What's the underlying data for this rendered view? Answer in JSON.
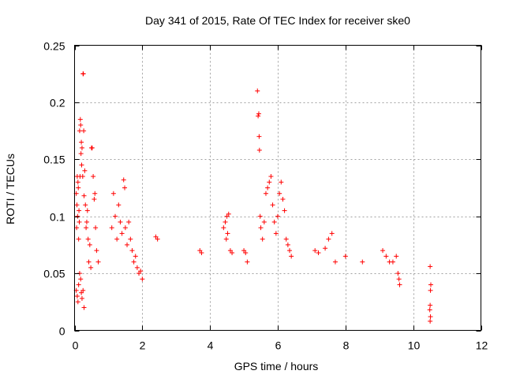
{
  "chart_data": {
    "type": "scatter",
    "title": "Day 341 of 2015, Rate Of TEC Index for receiver ske0",
    "xlabel": "GPS time / hours",
    "ylabel": "ROTI / TECUs",
    "xlim": [
      0,
      12
    ],
    "ylim": [
      0,
      0.25
    ],
    "xticks": [
      0,
      2,
      4,
      6,
      8,
      10,
      12
    ],
    "xtick_labels": [
      "0",
      "2",
      "4",
      "6",
      "8",
      "10",
      "12"
    ],
    "yticks": [
      0,
      0.05,
      0.1,
      0.15,
      0.2,
      0.25
    ],
    "ytick_labels": [
      "0",
      "0.05",
      "0.1",
      "0.15",
      "0.2",
      "0.25"
    ],
    "grid": true,
    "marker": "+",
    "marker_color": "#ff0000",
    "series": [
      {
        "name": "ROTI",
        "points": [
          [
            0.05,
            0.12
          ],
          [
            0.06,
            0.09
          ],
          [
            0.07,
            0.11
          ],
          [
            0.08,
            0.135
          ],
          [
            0.09,
            0.1
          ],
          [
            0.1,
            0.13
          ],
          [
            0.11,
            0.125
          ],
          [
            0.12,
            0.08
          ],
          [
            0.13,
            0.105
          ],
          [
            0.14,
            0.095
          ],
          [
            0.15,
            0.175
          ],
          [
            0.16,
            0.135
          ],
          [
            0.17,
            0.185
          ],
          [
            0.18,
            0.18
          ],
          [
            0.19,
            0.155
          ],
          [
            0.2,
            0.165
          ],
          [
            0.21,
            0.145
          ],
          [
            0.22,
            0.16
          ],
          [
            0.24,
            0.135
          ],
          [
            0.25,
            0.225
          ],
          [
            0.26,
            0.225
          ],
          [
            0.27,
            0.175
          ],
          [
            0.28,
            0.118
          ],
          [
            0.3,
            0.14
          ],
          [
            0.32,
            0.11
          ],
          [
            0.34,
            0.09
          ],
          [
            0.36,
            0.095
          ],
          [
            0.38,
            0.105
          ],
          [
            0.4,
            0.08
          ],
          [
            0.42,
            0.06
          ],
          [
            0.45,
            0.075
          ],
          [
            0.48,
            0.055
          ],
          [
            0.5,
            0.16
          ],
          [
            0.52,
            0.16
          ],
          [
            0.55,
            0.135
          ],
          [
            0.58,
            0.115
          ],
          [
            0.6,
            0.12
          ],
          [
            0.62,
            0.09
          ],
          [
            0.65,
            0.07
          ],
          [
            0.7,
            0.06
          ],
          [
            0.05,
            0.035
          ],
          [
            0.08,
            0.03
          ],
          [
            0.1,
            0.025
          ],
          [
            0.12,
            0.04
          ],
          [
            0.15,
            0.05
          ],
          [
            0.18,
            0.045
          ],
          [
            0.2,
            0.033
          ],
          [
            0.22,
            0.028
          ],
          [
            0.25,
            0.035
          ],
          [
            0.28,
            0.02
          ],
          [
            1.1,
            0.09
          ],
          [
            1.15,
            0.12
          ],
          [
            1.2,
            0.1
          ],
          [
            1.25,
            0.08
          ],
          [
            1.3,
            0.11
          ],
          [
            1.35,
            0.095
          ],
          [
            1.4,
            0.085
          ],
          [
            1.45,
            0.132
          ],
          [
            1.48,
            0.125
          ],
          [
            1.5,
            0.09
          ],
          [
            1.55,
            0.075
          ],
          [
            1.6,
            0.095
          ],
          [
            1.65,
            0.08
          ],
          [
            1.7,
            0.07
          ],
          [
            1.75,
            0.06
          ],
          [
            1.8,
            0.065
          ],
          [
            1.85,
            0.055
          ],
          [
            1.9,
            0.05
          ],
          [
            1.95,
            0.052
          ],
          [
            2.0,
            0.045
          ],
          [
            2.4,
            0.082
          ],
          [
            2.45,
            0.08
          ],
          [
            3.7,
            0.07
          ],
          [
            3.75,
            0.068
          ],
          [
            4.4,
            0.09
          ],
          [
            4.45,
            0.095
          ],
          [
            4.5,
            0.1
          ],
          [
            4.52,
            0.085
          ],
          [
            4.55,
            0.102
          ],
          [
            4.48,
            0.08
          ],
          [
            4.6,
            0.07
          ],
          [
            4.65,
            0.068
          ],
          [
            5.0,
            0.07
          ],
          [
            5.05,
            0.068
          ],
          [
            5.1,
            0.06
          ],
          [
            5.4,
            0.21
          ],
          [
            5.42,
            0.188
          ],
          [
            5.44,
            0.19
          ],
          [
            5.45,
            0.17
          ],
          [
            5.46,
            0.158
          ],
          [
            5.48,
            0.1
          ],
          [
            5.5,
            0.09
          ],
          [
            5.55,
            0.08
          ],
          [
            5.6,
            0.095
          ],
          [
            5.65,
            0.12
          ],
          [
            5.7,
            0.125
          ],
          [
            5.75,
            0.13
          ],
          [
            5.8,
            0.135
          ],
          [
            5.85,
            0.11
          ],
          [
            5.9,
            0.095
          ],
          [
            5.95,
            0.085
          ],
          [
            6.0,
            0.1
          ],
          [
            6.05,
            0.12
          ],
          [
            6.1,
            0.13
          ],
          [
            6.15,
            0.115
          ],
          [
            6.2,
            0.105
          ],
          [
            6.25,
            0.08
          ],
          [
            6.3,
            0.075
          ],
          [
            6.35,
            0.07
          ],
          [
            6.4,
            0.065
          ],
          [
            7.1,
            0.07
          ],
          [
            7.2,
            0.068
          ],
          [
            7.4,
            0.072
          ],
          [
            7.5,
            0.08
          ],
          [
            7.6,
            0.085
          ],
          [
            7.7,
            0.06
          ],
          [
            8.0,
            0.065
          ],
          [
            8.5,
            0.06
          ],
          [
            9.1,
            0.07
          ],
          [
            9.2,
            0.065
          ],
          [
            9.3,
            0.06
          ],
          [
            9.4,
            0.06
          ],
          [
            9.5,
            0.065
          ],
          [
            9.55,
            0.05
          ],
          [
            9.58,
            0.045
          ],
          [
            9.6,
            0.04
          ],
          [
            10.5,
            0.056
          ],
          [
            10.52,
            0.04
          ],
          [
            10.51,
            0.035
          ],
          [
            10.5,
            0.022
          ],
          [
            10.49,
            0.018
          ],
          [
            10.51,
            0.012
          ],
          [
            10.5,
            0.008
          ]
        ]
      }
    ]
  }
}
